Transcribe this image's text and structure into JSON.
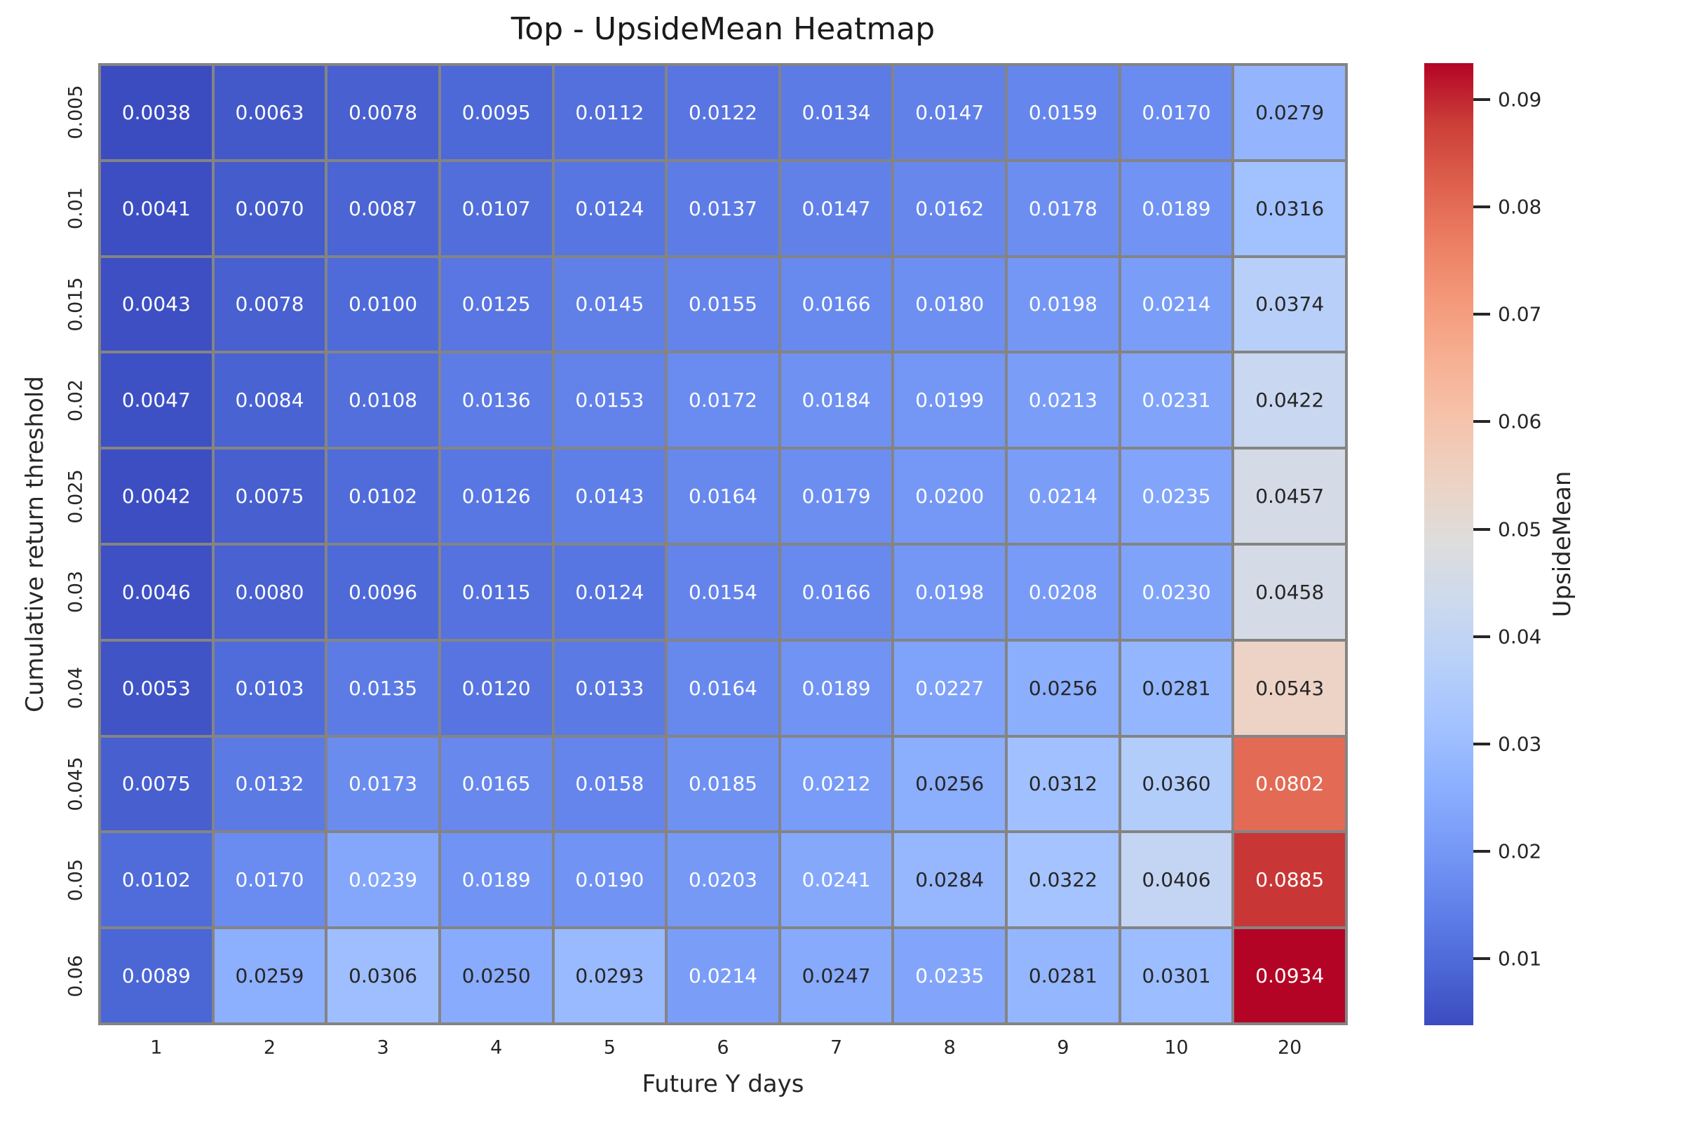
{
  "chart_data": {
    "type": "heatmap",
    "title": "Top - UpsideMean Heatmap",
    "xlabel": "Future Y days",
    "ylabel": "Cumulative return threshold",
    "x_categories": [
      "1",
      "2",
      "3",
      "4",
      "5",
      "6",
      "7",
      "8",
      "9",
      "10",
      "20"
    ],
    "y_categories": [
      "0.005",
      "0.01",
      "0.015",
      "0.02",
      "0.025",
      "0.03",
      "0.04",
      "0.045",
      "0.05",
      "0.06"
    ],
    "values": [
      [
        "0.0038",
        "0.0063",
        "0.0078",
        "0.0095",
        "0.0112",
        "0.0122",
        "0.0134",
        "0.0147",
        "0.0159",
        "0.0170",
        "0.0279"
      ],
      [
        "0.0041",
        "0.0070",
        "0.0087",
        "0.0107",
        "0.0124",
        "0.0137",
        "0.0147",
        "0.0162",
        "0.0178",
        "0.0189",
        "0.0316"
      ],
      [
        "0.0043",
        "0.0078",
        "0.0100",
        "0.0125",
        "0.0145",
        "0.0155",
        "0.0166",
        "0.0180",
        "0.0198",
        "0.0214",
        "0.0374"
      ],
      [
        "0.0047",
        "0.0084",
        "0.0108",
        "0.0136",
        "0.0153",
        "0.0172",
        "0.0184",
        "0.0199",
        "0.0213",
        "0.0231",
        "0.0422"
      ],
      [
        "0.0042",
        "0.0075",
        "0.0102",
        "0.0126",
        "0.0143",
        "0.0164",
        "0.0179",
        "0.0200",
        "0.0214",
        "0.0235",
        "0.0457"
      ],
      [
        "0.0046",
        "0.0080",
        "0.0096",
        "0.0115",
        "0.0124",
        "0.0154",
        "0.0166",
        "0.0198",
        "0.0208",
        "0.0230",
        "0.0458"
      ],
      [
        "0.0053",
        "0.0103",
        "0.0135",
        "0.0120",
        "0.0133",
        "0.0164",
        "0.0189",
        "0.0227",
        "0.0256",
        "0.0281",
        "0.0543"
      ],
      [
        "0.0075",
        "0.0132",
        "0.0173",
        "0.0165",
        "0.0158",
        "0.0185",
        "0.0212",
        "0.0256",
        "0.0312",
        "0.0360",
        "0.0802"
      ],
      [
        "0.0102",
        "0.0170",
        "0.0239",
        "0.0189",
        "0.0190",
        "0.0203",
        "0.0241",
        "0.0284",
        "0.0322",
        "0.0406",
        "0.0885"
      ],
      [
        "0.0089",
        "0.0259",
        "0.0306",
        "0.0250",
        "0.0293",
        "0.0214",
        "0.0247",
        "0.0235",
        "0.0281",
        "0.0301",
        "0.0934"
      ]
    ],
    "vmin": 0.0038,
    "vmax": 0.0934,
    "colorbar": {
      "label": "UpsideMean",
      "tick_labels": [
        "0.01",
        "0.02",
        "0.03",
        "0.04",
        "0.05",
        "0.06",
        "0.07",
        "0.08",
        "0.09"
      ],
      "tick_values": [
        0.01,
        0.02,
        0.03,
        0.04,
        0.05,
        0.06,
        0.07,
        0.08,
        0.09
      ]
    },
    "colormap": {
      "name": "coolwarm",
      "anchors": [
        "#3b4cc0",
        "#4d68d7",
        "#6282ea",
        "#779af7",
        "#8db0fe",
        "#a3c2ff",
        "#b8d0f9",
        "#ccd9ee",
        "#dddddd",
        "#ecd3c5",
        "#f5c4ad",
        "#f7b194",
        "#f49a7b",
        "#ec7f63",
        "#de604d",
        "#cb3e38",
        "#b40426"
      ]
    },
    "grid_line_color": "#848484",
    "annotation_text_dark": "#262626",
    "annotation_text_light": "#ffffff",
    "legend_position": "right-colorbar",
    "grid": "cell-borders"
  }
}
